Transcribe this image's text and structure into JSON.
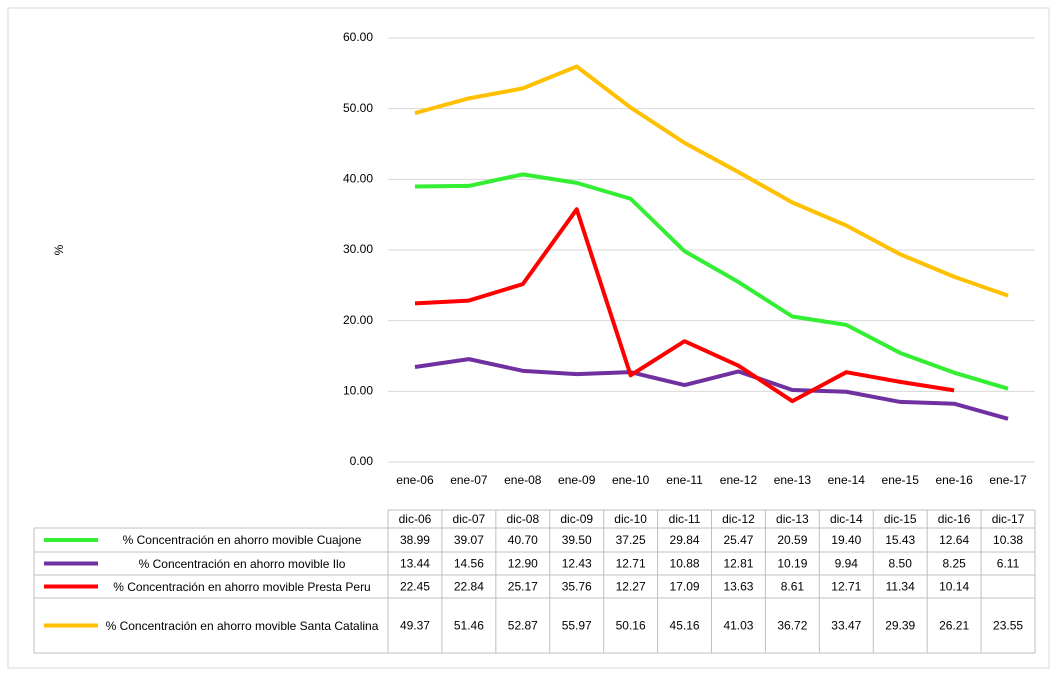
{
  "chart_data": {
    "type": "line",
    "y_axis_label": "%",
    "categories": [
      "ene-06",
      "ene-07",
      "ene-08",
      "ene-09",
      "ene-10",
      "ene-11",
      "ene-12",
      "ene-13",
      "ene-14",
      "ene-15",
      "ene-16",
      "ene-17"
    ],
    "table_columns": [
      "dic-06",
      "dic-07",
      "dic-08",
      "dic-09",
      "dic-10",
      "dic-11",
      "dic-12",
      "dic-13",
      "dic-14",
      "dic-15",
      "dic-16",
      "dic-17"
    ],
    "ylim": [
      0,
      60
    ],
    "yticks": [
      {
        "value": 0,
        "label": "0.00"
      },
      {
        "value": 10,
        "label": "10.00"
      },
      {
        "value": 20,
        "label": "20.00"
      },
      {
        "value": 30,
        "label": "30.00"
      },
      {
        "value": 40,
        "label": "40.00"
      },
      {
        "value": 50,
        "label": "50.00"
      },
      {
        "value": 60,
        "label": "60.00"
      }
    ],
    "grid": true,
    "series": [
      {
        "name": "% Concentración en ahorro movible Cuajone",
        "color": "#33ee33",
        "values": [
          38.99,
          39.07,
          40.7,
          39.5,
          37.25,
          29.84,
          25.47,
          20.59,
          19.4,
          15.43,
          12.64,
          10.38
        ],
        "value_labels": [
          "38.99",
          "39.07",
          "40.70",
          "39.50",
          "37.25",
          "29.84",
          "25.47",
          "20.59",
          "19.40",
          "15.43",
          "12.64",
          "10.38"
        ]
      },
      {
        "name": "% Concentración en ahorro movible Ilo",
        "color": "#7030a0",
        "values": [
          13.44,
          14.56,
          12.9,
          12.43,
          12.71,
          10.88,
          12.81,
          10.19,
          9.94,
          8.5,
          8.25,
          6.11
        ],
        "value_labels": [
          "13.44",
          "14.56",
          "12.90",
          "12.43",
          "12.71",
          "10.88",
          "12.81",
          "10.19",
          "9.94",
          "8.50",
          "8.25",
          "6.11"
        ]
      },
      {
        "name": "% Concentración en ahorro movible Presta Peru",
        "color": "#ff0000",
        "values": [
          22.45,
          22.84,
          25.17,
          35.76,
          12.27,
          17.09,
          13.63,
          8.61,
          12.71,
          11.34,
          10.14,
          null
        ],
        "value_labels": [
          "22.45",
          "22.84",
          "25.17",
          "35.76",
          "12.27",
          "17.09",
          "13.63",
          "8.61",
          "12.71",
          "11.34",
          "10.14",
          null
        ]
      },
      {
        "name": "% Concentración en ahorro movible Santa Catalina",
        "color": "#ffc000",
        "values": [
          49.37,
          51.46,
          52.87,
          55.97,
          50.16,
          45.16,
          41.03,
          36.72,
          33.47,
          29.39,
          26.21,
          23.55
        ],
        "value_labels": [
          "49.37",
          "51.46",
          "52.87",
          "55.97",
          "50.16",
          "45.16",
          "41.03",
          "36.72",
          "33.47",
          "29.39",
          "26.21",
          "23.55"
        ]
      }
    ]
  }
}
